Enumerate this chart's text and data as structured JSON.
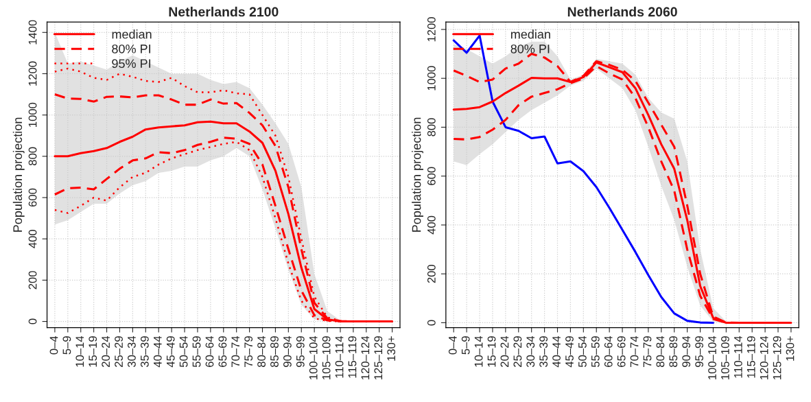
{
  "chart_data": [
    {
      "type": "line",
      "title": "Netherlands 2100",
      "ylabel": "Population projection",
      "categories": [
        "0–4",
        "5–9",
        "10–14",
        "15–19",
        "20–24",
        "25–29",
        "30–34",
        "35–39",
        "40–44",
        "45–49",
        "50–54",
        "55–59",
        "60–64",
        "65–69",
        "70–74",
        "75–79",
        "80–84",
        "85–89",
        "90–94",
        "95–99",
        "100–104",
        "105–109",
        "110–114",
        "115–119",
        "120–124",
        "125–129",
        "130+"
      ],
      "ylim": [
        -30,
        1450
      ],
      "yticks": [
        0,
        200,
        400,
        600,
        800,
        1000,
        1200,
        1400
      ],
      "grid": true,
      "legend": "top left",
      "series": [
        {
          "name": "median",
          "color": "#ff0000",
          "line_style": "solid",
          "values": [
            800,
            800,
            815,
            825,
            840,
            870,
            895,
            930,
            940,
            945,
            950,
            965,
            968,
            960,
            960,
            920,
            865,
            730,
            520,
            260,
            60,
            10,
            0,
            0,
            0,
            0,
            0
          ],
          "lower": [
            470,
            490,
            530,
            570,
            570,
            620,
            660,
            680,
            720,
            730,
            750,
            750,
            780,
            800,
            840,
            800,
            640,
            450,
            250,
            80,
            10,
            0,
            0,
            0,
            0,
            0,
            0
          ],
          "upper": [
            1400,
            1250,
            1260,
            1240,
            1220,
            1260,
            1290,
            1260,
            1230,
            1200,
            1200,
            1200,
            1170,
            1150,
            1160,
            1130,
            1050,
            960,
            860,
            650,
            230,
            50,
            5,
            0,
            0,
            0,
            0
          ]
        },
        {
          "name": "80% PI",
          "color": "#ff0000",
          "line_style": "dashed",
          "values": [
            1100,
            1080,
            1078,
            1065,
            1088,
            1090,
            1085,
            1095,
            1095,
            1075,
            1050,
            1050,
            1075,
            1055,
            1058,
            1010,
            950,
            850,
            650,
            350,
            90,
            15,
            2,
            0,
            0,
            0,
            0
          ]
        },
        {
          "color": "#ff0000",
          "line_style": "dashed",
          "values": [
            615,
            645,
            648,
            640,
            690,
            740,
            780,
            790,
            820,
            815,
            830,
            855,
            870,
            890,
            885,
            860,
            760,
            560,
            350,
            150,
            30,
            5,
            0,
            0,
            0,
            0,
            0
          ]
        },
        {
          "name": "95% PI",
          "color": "#ff0000",
          "line_style": "dotted",
          "values": [
            1210,
            1225,
            1210,
            1180,
            1170,
            1200,
            1185,
            1165,
            1160,
            1180,
            1140,
            1110,
            1110,
            1120,
            1105,
            1100,
            1000,
            900,
            700,
            400,
            120,
            20,
            3,
            0,
            0,
            0,
            0
          ]
        },
        {
          "color": "#ff0000",
          "line_style": "dotted",
          "values": [
            540,
            525,
            560,
            600,
            585,
            650,
            700,
            720,
            760,
            790,
            810,
            830,
            845,
            860,
            870,
            830,
            700,
            500,
            280,
            100,
            15,
            2,
            0,
            0,
            0,
            0,
            0
          ]
        }
      ]
    },
    {
      "type": "line",
      "title": "Netherlands 2060",
      "ylabel": "Population projection",
      "categories": [
        "0–4",
        "5–9",
        "10–14",
        "15–19",
        "20–24",
        "25–29",
        "30–34",
        "35–39",
        "40–44",
        "45–49",
        "50–54",
        "55–59",
        "60–64",
        "65–69",
        "70–74",
        "75–79",
        "80–84",
        "85–89",
        "90–94",
        "95–99",
        "100–104",
        "105–109",
        "110–114",
        "115–119",
        "120–124",
        "125–129",
        "130+"
      ],
      "ylim": [
        -20,
        1230
      ],
      "yticks": [
        0,
        200,
        400,
        600,
        800,
        1000,
        1200
      ],
      "grid": true,
      "legend": "top left",
      "series": [
        {
          "color": "#0000ff",
          "line_style": "solid",
          "values": [
            1155,
            1105,
            1175,
            905,
            800,
            785,
            755,
            762,
            652,
            660,
            620,
            555,
            470,
            380,
            290,
            195,
            105,
            38,
            8,
            1,
            0,
            null,
            null,
            null,
            null,
            null,
            null
          ]
        },
        {
          "name": "median",
          "color": "#ff0000",
          "line_style": "solid",
          "values": [
            872,
            875,
            882,
            905,
            940,
            970,
            1002,
            1000,
            1000,
            985,
            1005,
            1065,
            1045,
            1025,
            960,
            850,
            730,
            630,
            420,
            150,
            20,
            0,
            0,
            0,
            0,
            0,
            0
          ],
          "lower": [
            660,
            645,
            690,
            730,
            780,
            830,
            870,
            900,
            930,
            970,
            990,
            1040,
            1000,
            960,
            870,
            720,
            560,
            420,
            230,
            70,
            5,
            0,
            0,
            0,
            0,
            0,
            0
          ],
          "upper": [
            1140,
            1120,
            1090,
            1060,
            1090,
            1130,
            1150,
            1150,
            1090,
            995,
            1015,
            1080,
            1070,
            1060,
            1015,
            920,
            860,
            835,
            660,
            300,
            60,
            5,
            0,
            0,
            0,
            0,
            0
          ]
        },
        {
          "name": "80% PI",
          "color": "#ff0000",
          "line_style": "dashed",
          "values": [
            1032,
            1010,
            985,
            995,
            1040,
            1060,
            1100,
            1085,
            1050,
            985,
            1010,
            1070,
            1055,
            1035,
            990,
            900,
            810,
            720,
            480,
            200,
            25,
            1,
            0,
            0,
            0,
            0,
            0
          ]
        },
        {
          "color": "#ff0000",
          "line_style": "dashed",
          "values": [
            752,
            750,
            760,
            790,
            830,
            890,
            925,
            940,
            955,
            980,
            1000,
            1050,
            1020,
            995,
            920,
            800,
            660,
            540,
            300,
            110,
            15,
            0,
            0,
            0,
            0,
            0,
            0
          ]
        }
      ]
    }
  ]
}
